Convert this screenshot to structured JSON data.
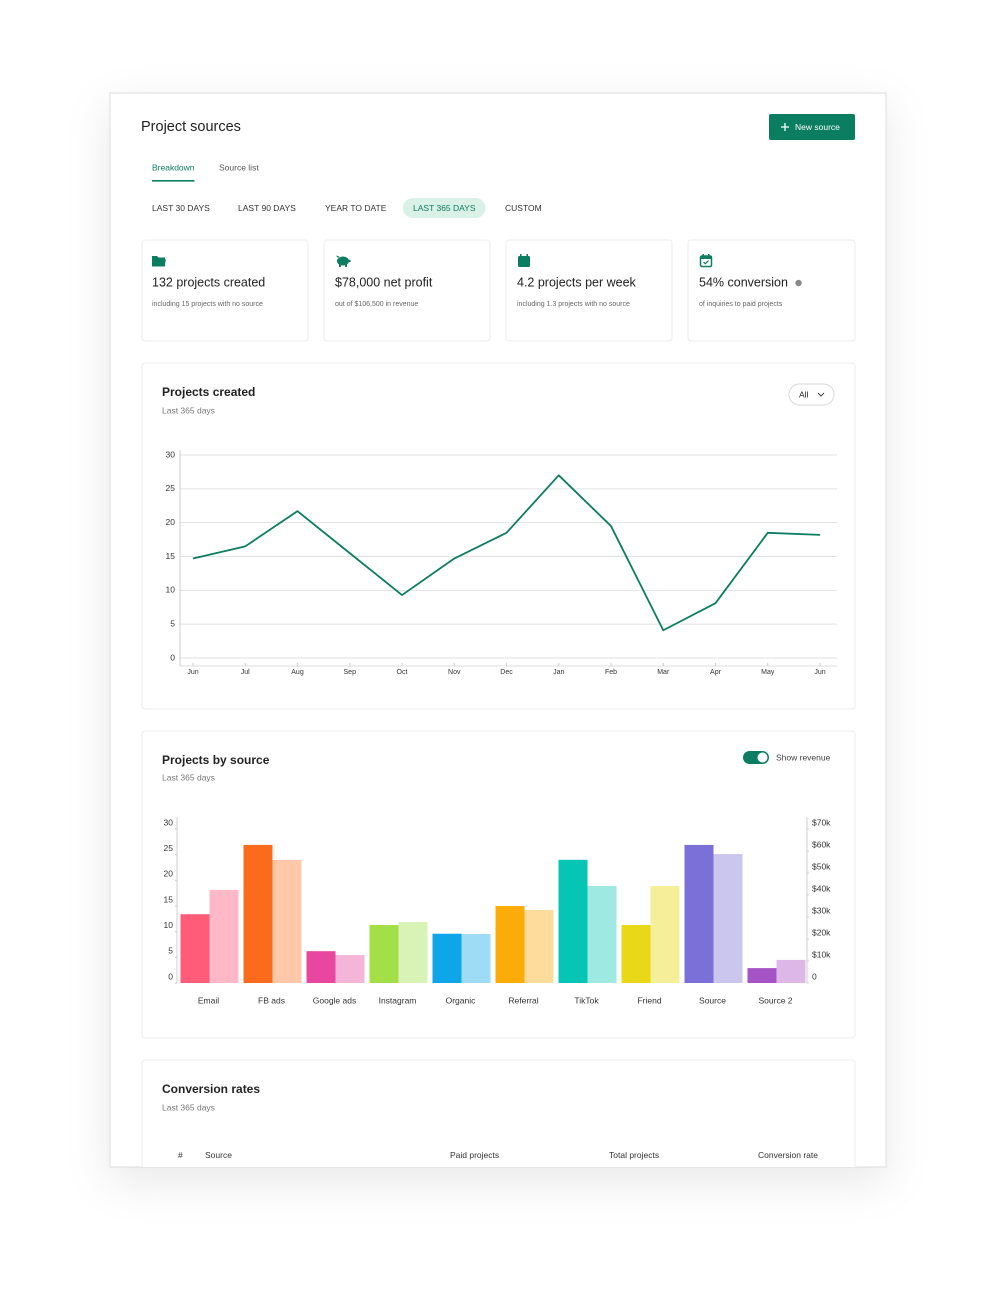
{
  "header": {
    "title": "Project sources",
    "button": "New source"
  },
  "tabs": {
    "items": [
      "Breakdown",
      "Source list"
    ],
    "selected": 0
  },
  "ranges": {
    "items": [
      "LAST 30 DAYS",
      "LAST 90 DAYS",
      "YEAR TO DATE",
      "LAST 365 DAYS",
      "CUSTOM"
    ],
    "selected": 3
  },
  "stats": [
    {
      "title": "132 projects created",
      "subtitle": "including 15 projects with no source"
    },
    {
      "title": "$78,000 net profit",
      "subtitle": "out of $106,500 in revenue"
    },
    {
      "title": "4.2 projects per week",
      "subtitle": "including 1.3 projects with no source"
    },
    {
      "title": "54% conversion",
      "subtitle": "of inquiries to paid projects"
    }
  ],
  "chart_data": [
    {
      "type": "line",
      "title": "Projects created",
      "subtitle": "Last 365 days",
      "filter": "All",
      "categories": [
        "Jun",
        "Jul",
        "Aug",
        "Sep",
        "Oct",
        "Nov",
        "Dec",
        "Jan",
        "Feb",
        "Mar",
        "Apr",
        "May",
        "Jun"
      ],
      "series": [
        {
          "color": "#0b7d61",
          "values": [
            14.7,
            16.5,
            21.7,
            15.5,
            9.3,
            14.7,
            18.5,
            27,
            19.5,
            4.1,
            8.1,
            18.5,
            18.2
          ]
        }
      ],
      "ylim": [
        0,
        30
      ],
      "yticks": [
        0,
        5,
        10,
        15,
        20,
        25,
        30
      ],
      "grid": true
    },
    {
      "type": "bar",
      "title": "Projects by source",
      "subtitle": "Last 365 days",
      "toggle": "Show revenue",
      "categories": [
        "Email",
        "FB ads",
        "Google ads",
        "Instagram",
        "Organic",
        "Referral",
        "TikTok",
        "Friend",
        "Source",
        "Source 2"
      ],
      "series": [
        {
          "values": [
            13.4,
            26.9,
            6.2,
            11.3,
            9.6,
            15,
            24,
            11.3,
            26.9,
            2.9
          ],
          "colors": [
            "#ff5c7a",
            "#fa6c1b",
            "#e8479f",
            "#a3e048",
            "#0ea5e9",
            "#fcac09",
            "#06c5b5",
            "#e8d818",
            "#7b6fd8",
            "#a653c6"
          ]
        },
        {
          "axis": "y2",
          "values": [
            42300,
            55900,
            12700,
            27700,
            22300,
            33200,
            44100,
            44100,
            58600,
            10500
          ],
          "colors": [
            "#ffb8c8",
            "#ffc8a8",
            "#f5b5d8",
            "#d9f2b5",
            "#9edcf5",
            "#fedd9c",
            "#9ee9e1",
            "#f5ef9a",
            "#cbc6ee",
            "#ddb8e6"
          ]
        }
      ],
      "ylim": [
        0,
        30
      ],
      "yticks": [
        0,
        5,
        10,
        15,
        20,
        25,
        30
      ],
      "y2lim": [
        0,
        70000
      ],
      "y2ticks": [
        0,
        {
          "value": 10000,
          "label": "$10k"
        },
        {
          "value": 20000,
          "label": "$20k"
        },
        {
          "value": 30000,
          "label": "$30k"
        },
        {
          "value": 40000,
          "label": "$40k"
        },
        {
          "value": 50000,
          "label": "$50k"
        },
        {
          "value": 60000,
          "label": "$60k"
        },
        {
          "value": 70000,
          "label": "$70k"
        }
      ],
      "grid": false
    }
  ],
  "table": {
    "title": "Conversion rates",
    "subtitle": "Last 365 days",
    "columns": [
      "#",
      "Source",
      "Paid projects",
      "Total projects",
      "Conversion rate"
    ]
  }
}
